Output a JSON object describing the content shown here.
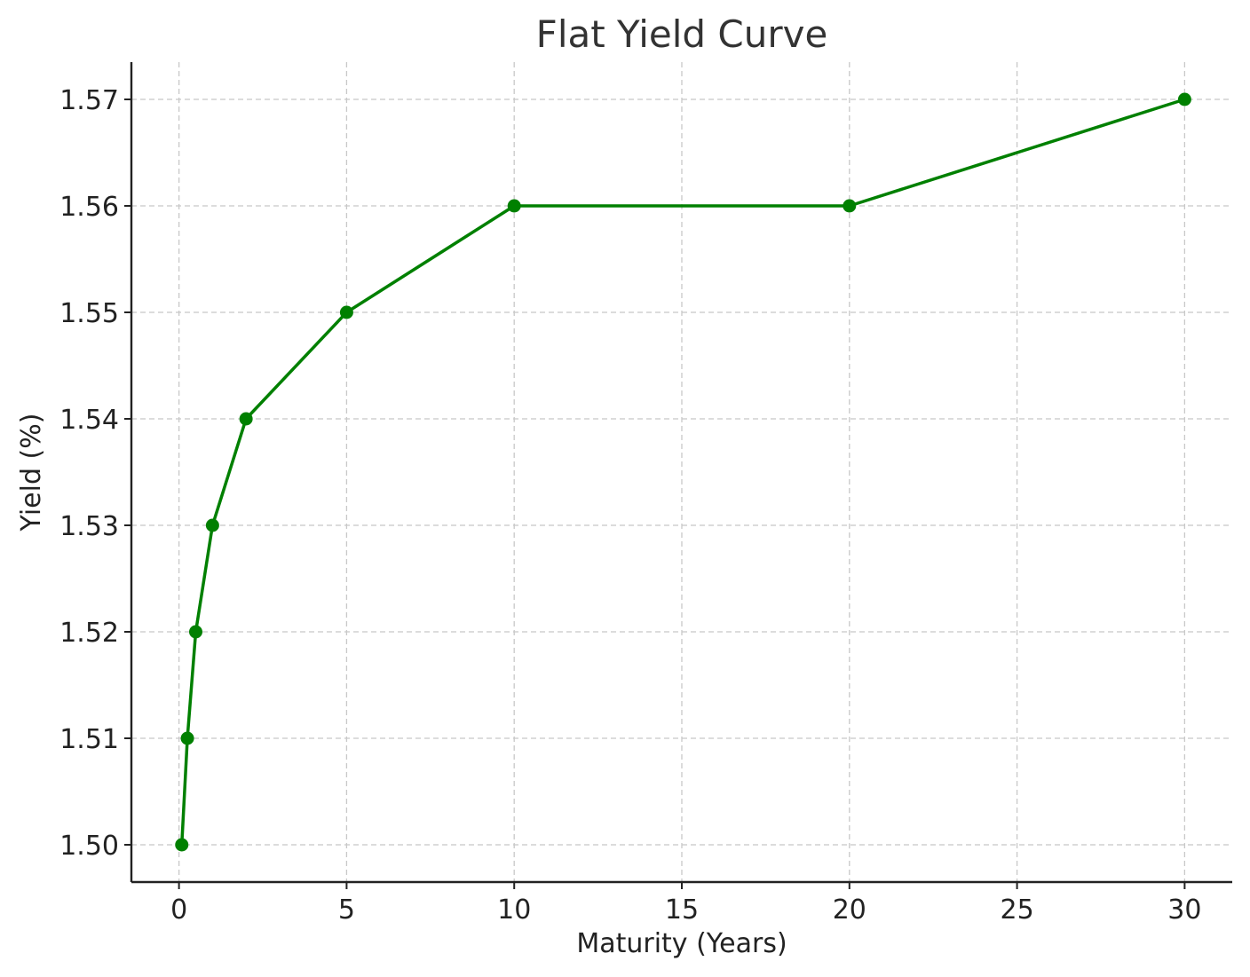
{
  "chart_data": {
    "type": "line",
    "title": "Flat Yield Curve",
    "xlabel": "Maturity (Years)",
    "ylabel": "Yield (%)",
    "xlim": [
      -1.42,
      31.42
    ],
    "ylim": [
      1.4965,
      1.5735
    ],
    "xticks": [
      0,
      5,
      10,
      15,
      20,
      25,
      30
    ],
    "xtick_labels": [
      "0",
      "5",
      "10",
      "15",
      "20",
      "25",
      "30"
    ],
    "yticks": [
      1.5,
      1.51,
      1.52,
      1.53,
      1.54,
      1.55,
      1.56,
      1.57
    ],
    "ytick_labels": [
      "1.50",
      "1.51",
      "1.52",
      "1.53",
      "1.54",
      "1.55",
      "1.56",
      "1.57"
    ],
    "grid": true,
    "series": [
      {
        "color": "#008000",
        "marker": "circle",
        "x": [
          0.083,
          0.25,
          0.5,
          1,
          2,
          5,
          10,
          20,
          30
        ],
        "y": [
          1.5,
          1.51,
          1.52,
          1.53,
          1.54,
          1.55,
          1.56,
          1.56,
          1.57
        ]
      }
    ]
  }
}
